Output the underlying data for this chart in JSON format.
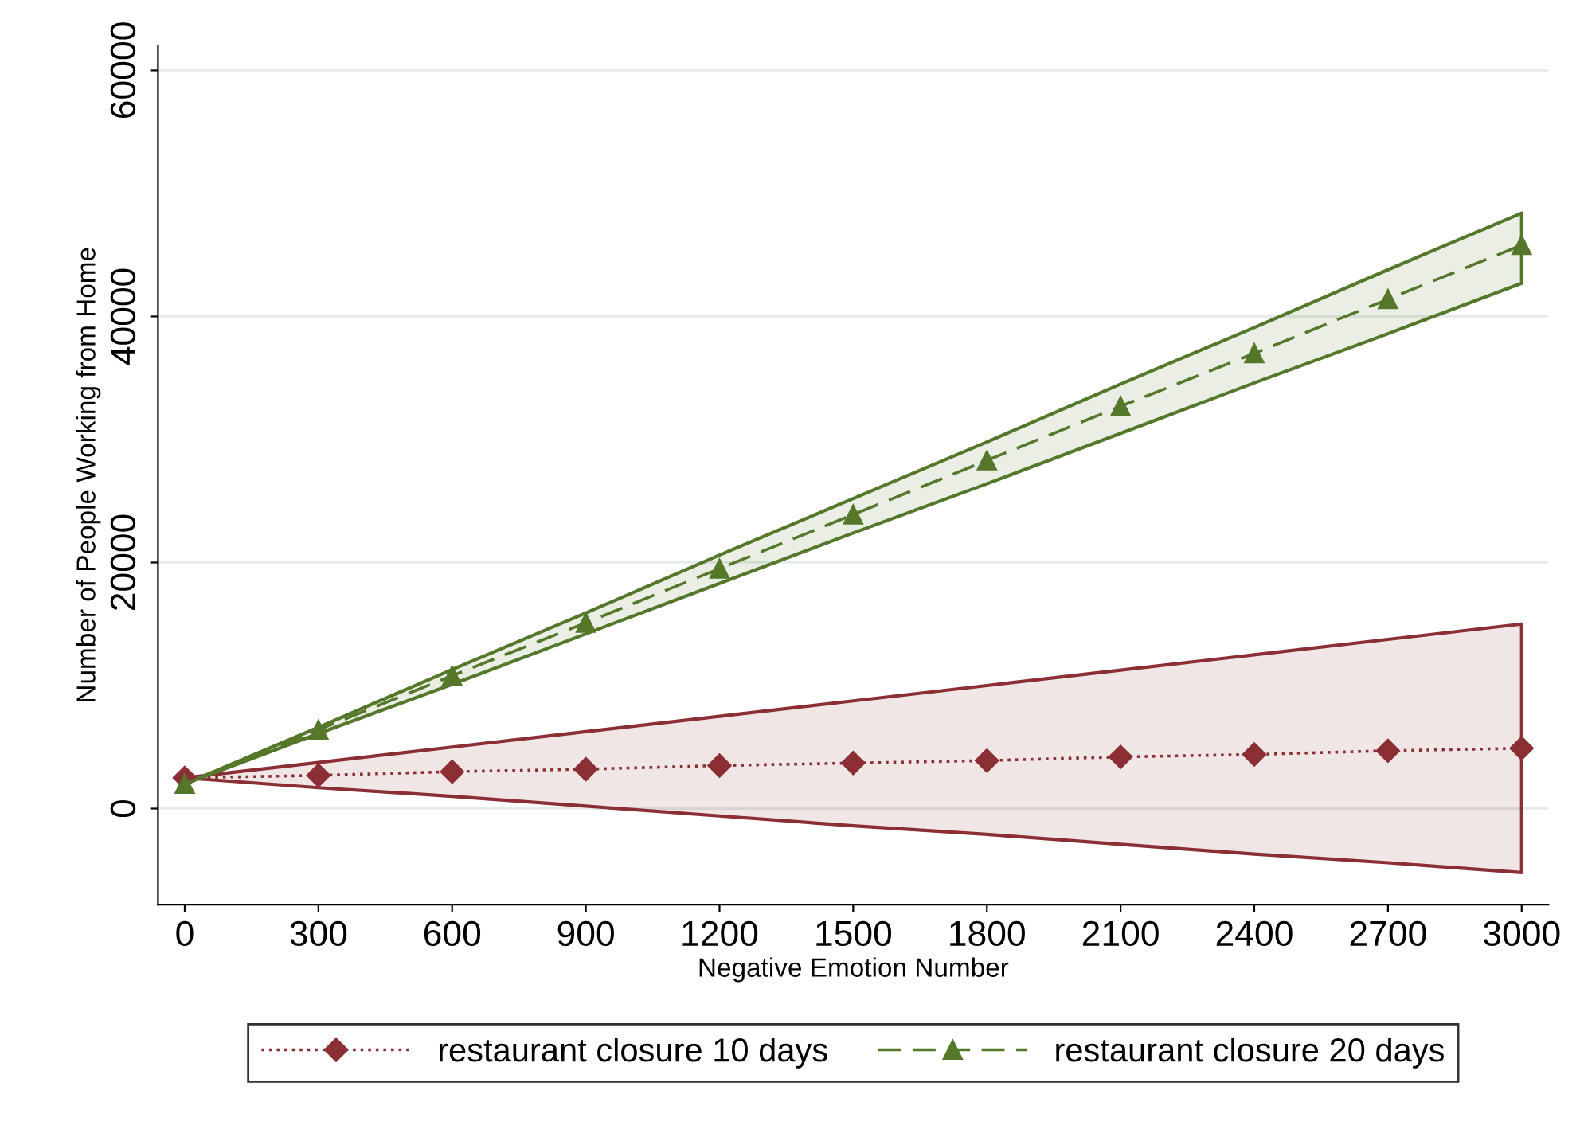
{
  "chart_data": {
    "type": "line",
    "xlabel": "Negative Emotion Number",
    "ylabel": "Number of People Working from Home",
    "x": [
      0,
      300,
      600,
      900,
      1200,
      1500,
      1800,
      2100,
      2400,
      2700,
      3000
    ],
    "series": [
      {
        "name": "restaurant closure 10 days",
        "color": "#8b2f35",
        "marker": "diamond",
        "line_style": "dotted",
        "values": [
          2500,
          2700,
          3000,
          3200,
          3500,
          3700,
          3900,
          4200,
          4400,
          4700,
          4900
        ],
        "lower": [
          2500,
          1700,
          1000,
          200,
          -600,
          -1400,
          -2100,
          -2900,
          -3700,
          -4400,
          -5200
        ],
        "upper": [
          2500,
          3750,
          5000,
          6250,
          7500,
          8750,
          10000,
          11250,
          12500,
          13750,
          15000
        ]
      },
      {
        "name": "restaurant closure 20 days",
        "color": "#55772a",
        "marker": "triangle",
        "line_style": "dashed",
        "values": [
          2000,
          6400,
          10800,
          15100,
          19500,
          23900,
          28300,
          32700,
          37000,
          41400,
          45800
        ],
        "lower": [
          2000,
          6100,
          10100,
          14200,
          18300,
          22400,
          26400,
          30500,
          34600,
          38600,
          42700
        ],
        "upper": [
          2000,
          6600,
          11300,
          15900,
          20600,
          25200,
          29800,
          34500,
          39100,
          43800,
          48400
        ]
      }
    ],
    "xlim": [
      -60,
      3060
    ],
    "ylim": [
      -7800,
      62000
    ],
    "xticks": [
      0,
      300,
      600,
      900,
      1200,
      1500,
      1800,
      2100,
      2400,
      2700,
      3000
    ],
    "yticks": [
      0,
      20000,
      40000,
      60000
    ],
    "grid": "y",
    "legend": "bottom"
  }
}
